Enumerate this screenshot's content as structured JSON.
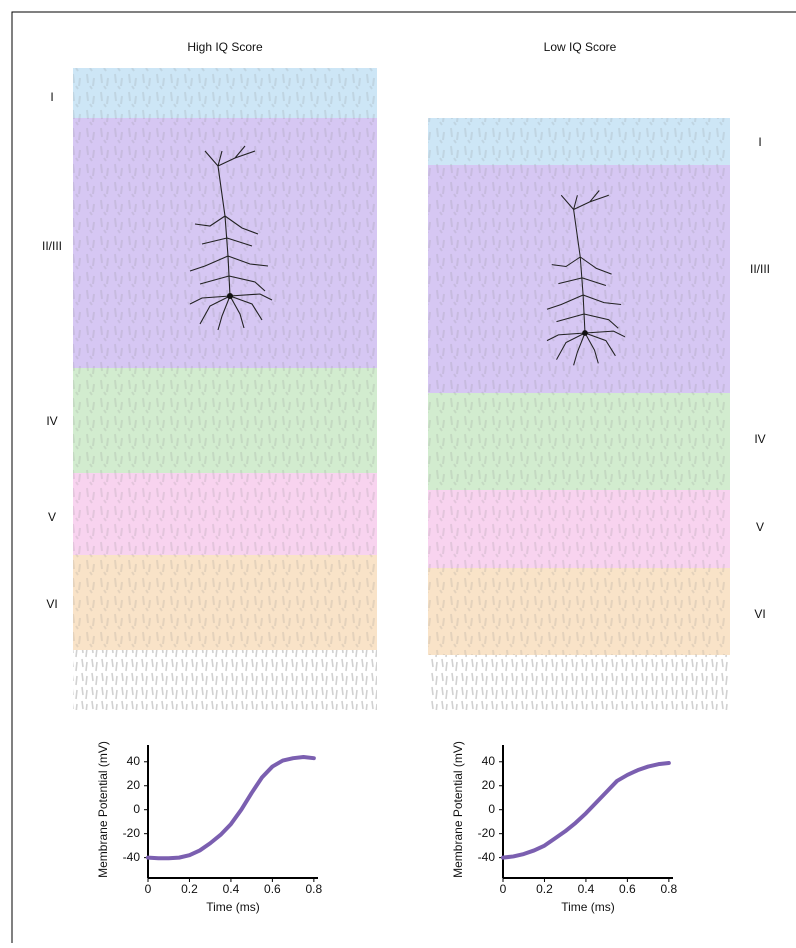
{
  "columns": [
    {
      "title": "High IQ Score",
      "layers": [
        "I",
        "II/III",
        "IV",
        "V",
        "VI"
      ]
    },
    {
      "title": "Low IQ Score",
      "layers": [
        "I",
        "II/III",
        "IV",
        "V",
        "VI"
      ]
    }
  ],
  "chart_data": [
    {
      "type": "line",
      "xlabel": "Time (ms)",
      "ylabel": "Membrane Potential (mV)",
      "x": [
        0,
        0.05,
        0.1,
        0.15,
        0.2,
        0.25,
        0.3,
        0.35,
        0.4,
        0.45,
        0.5,
        0.55,
        0.6,
        0.65,
        0.7,
        0.75,
        0.8
      ],
      "series": [
        {
          "color": "#7b5fb0",
          "values": [
            -40,
            -40.5,
            -40.5,
            -40,
            -38,
            -34,
            -28,
            -21,
            -12,
            0,
            14,
            27,
            36,
            41,
            43,
            44,
            43
          ]
        }
      ],
      "xlim": [
        0,
        0.82
      ],
      "ylim": [
        -57,
        54
      ],
      "xticks": [
        0,
        0.2,
        0.4,
        0.6,
        0.8
      ],
      "yticks": [
        -40,
        -20,
        0,
        20,
        40
      ]
    },
    {
      "type": "line",
      "xlabel": "Time (ms)",
      "ylabel": "Membrane Potential (mV)",
      "x": [
        0,
        0.05,
        0.1,
        0.15,
        0.2,
        0.25,
        0.3,
        0.35,
        0.4,
        0.45,
        0.5,
        0.55,
        0.6,
        0.65,
        0.7,
        0.75,
        0.8
      ],
      "series": [
        {
          "color": "#7b5fb0",
          "values": [
            -40,
            -39,
            -37,
            -34,
            -30,
            -24,
            -18,
            -11,
            -3,
            6,
            15,
            24,
            29,
            33,
            36,
            38,
            39
          ]
        }
      ],
      "xlim": [
        0,
        0.82
      ],
      "ylim": [
        -57,
        54
      ],
      "xticks": [
        0,
        0.2,
        0.4,
        0.6,
        0.8
      ],
      "yticks": [
        -40,
        -20,
        0,
        20,
        40
      ]
    }
  ]
}
